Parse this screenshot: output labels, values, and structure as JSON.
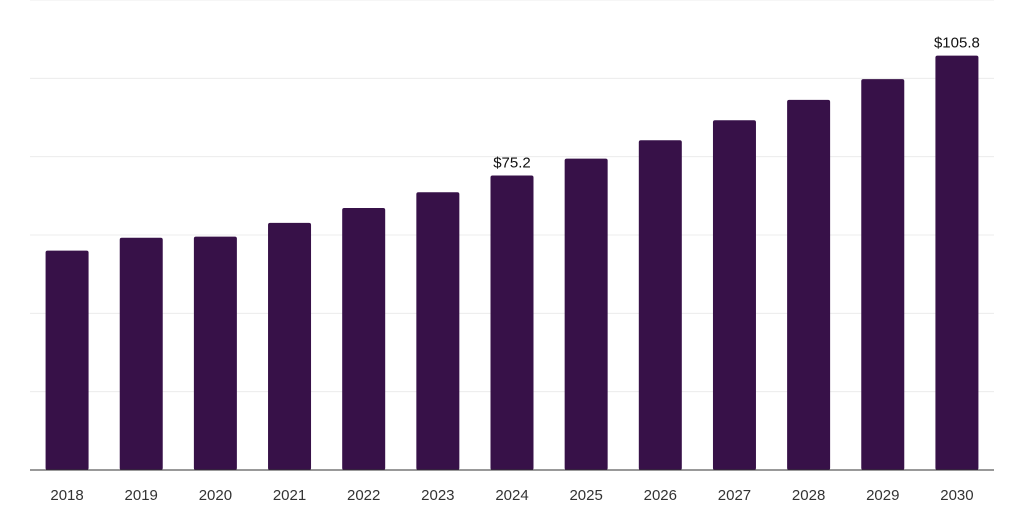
{
  "chart_data": {
    "type": "bar",
    "categories": [
      "2018",
      "2019",
      "2020",
      "2021",
      "2022",
      "2023",
      "2024",
      "2025",
      "2026",
      "2027",
      "2028",
      "2029",
      "2030"
    ],
    "values": [
      56.0,
      59.3,
      59.6,
      63.1,
      66.9,
      70.9,
      75.2,
      79.5,
      84.2,
      89.3,
      94.5,
      99.8,
      105.8
    ],
    "data_labels": [
      {
        "index": 6,
        "text": "$75.2"
      },
      {
        "index": 12,
        "text": "$105.8"
      }
    ],
    "title": "",
    "xlabel": "",
    "ylabel": "",
    "ylim": [
      0,
      120
    ],
    "grid": true,
    "legend": "none",
    "colors": {
      "bar": "#371148",
      "grid": "#ececec",
      "axis": "#333333"
    }
  }
}
